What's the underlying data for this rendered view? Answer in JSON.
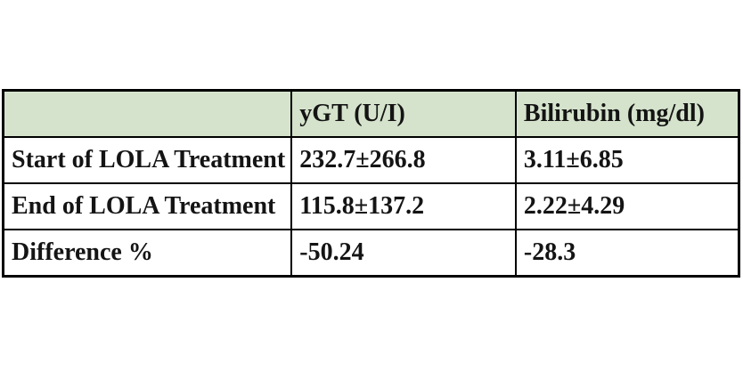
{
  "colors": {
    "header_bg": "#d5e3cc",
    "border": "#000000",
    "text": "#141414",
    "page_bg": "#ffffff"
  },
  "chart_data": {
    "type": "table",
    "title": "",
    "columns": [
      "",
      "yGT (U/I)",
      "Bilirubin (mg/dl)"
    ],
    "rows": [
      [
        "Start of LOLA Treatment",
        "232.7±266.8",
        "3.11±6.85"
      ],
      [
        "End of LOLA Treatment",
        "115.8±137.2",
        "2.22±4.29"
      ],
      [
        "Difference %",
        "-50.24",
        "-28.3"
      ]
    ]
  }
}
